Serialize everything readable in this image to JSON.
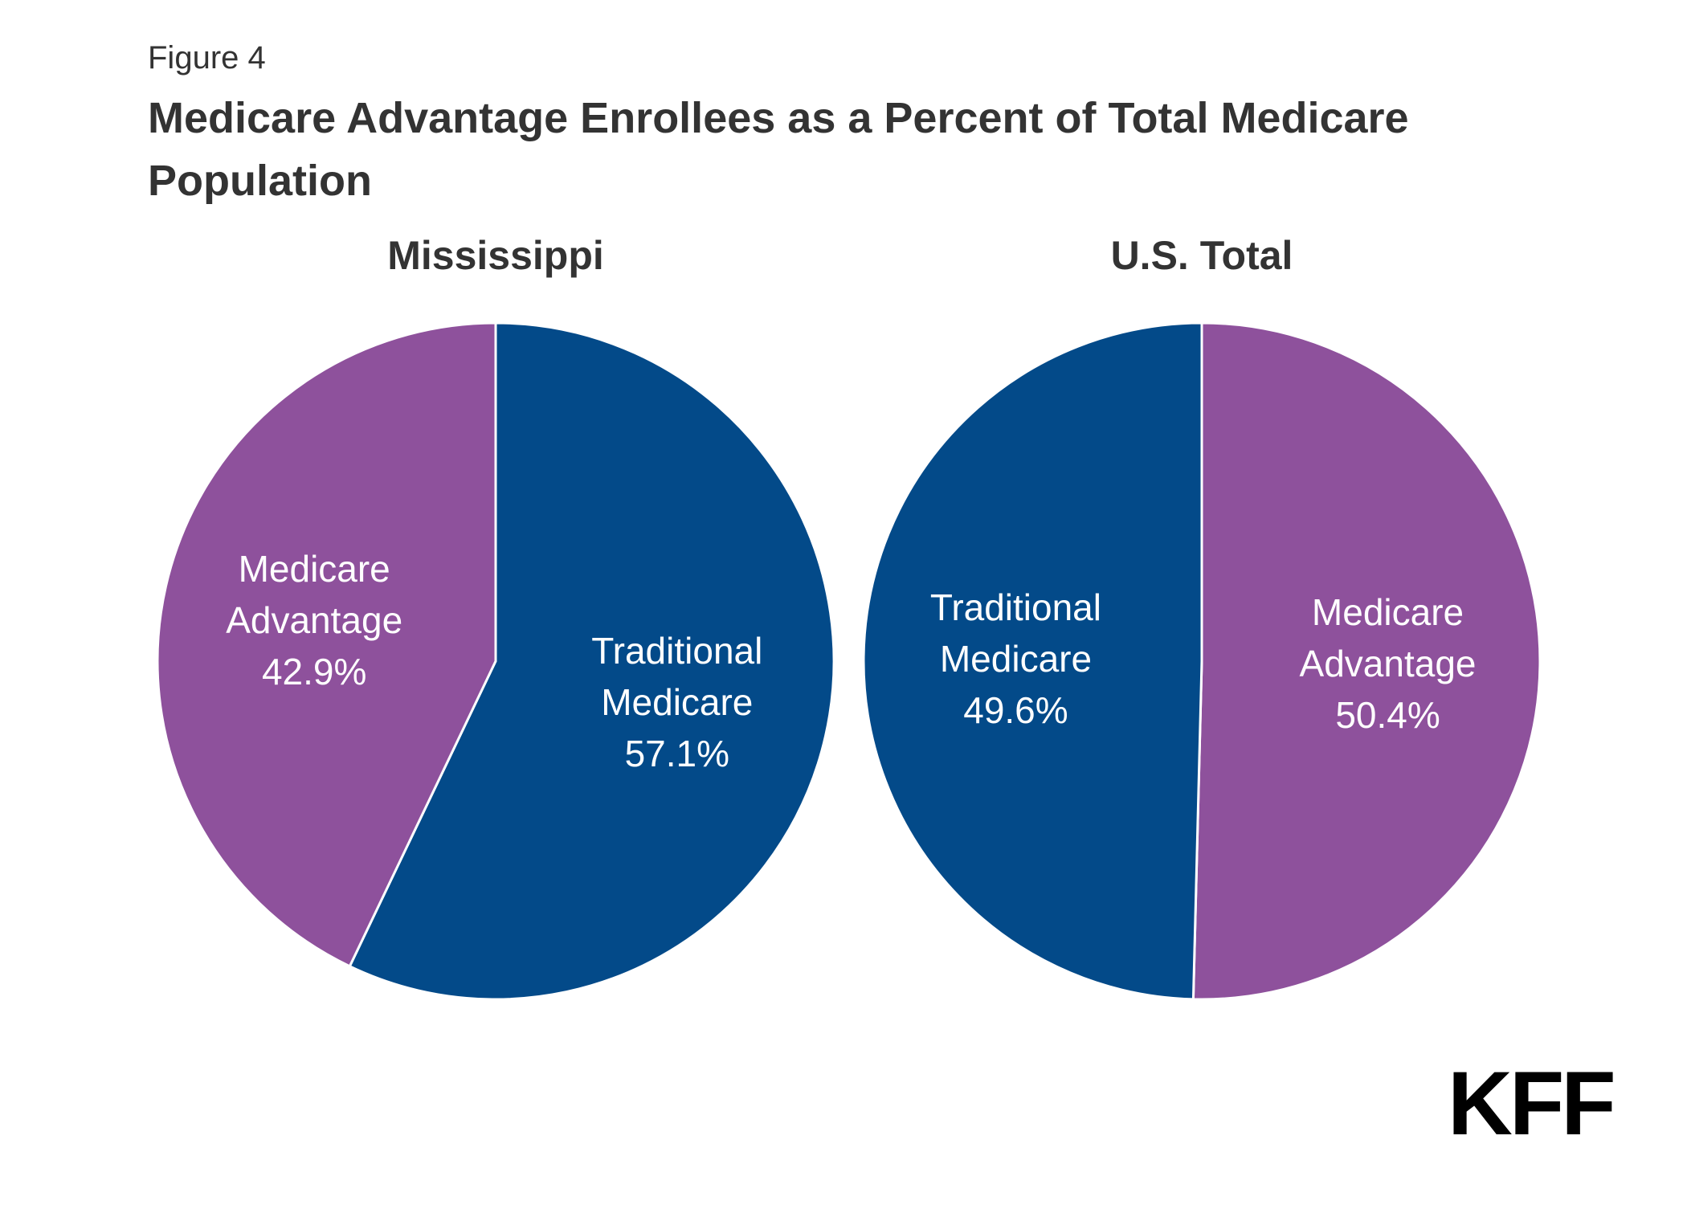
{
  "figure_label": "Figure 4",
  "title": "Medicare Advantage Enrollees as a Percent of Total Medicare Population",
  "logo": "KFF",
  "colors": {
    "medicare_advantage": "#8E519C",
    "traditional_medicare": "#034A89",
    "label_text": "#FFFFFF",
    "title_text": "#333333"
  },
  "chart_data": [
    {
      "type": "pie",
      "title": "Mississippi",
      "slices": [
        {
          "label": [
            "Traditional",
            "Medicare"
          ],
          "value": 57.1,
          "value_label": "57.1%",
          "color": "#034A89"
        },
        {
          "label": [
            "Medicare",
            "Advantage"
          ],
          "value": 42.9,
          "value_label": "42.9%",
          "color": "#8E519C"
        }
      ]
    },
    {
      "type": "pie",
      "title": "U.S. Total",
      "slices": [
        {
          "label": [
            "Medicare",
            "Advantage"
          ],
          "value": 50.4,
          "value_label": "50.4%",
          "color": "#8E519C"
        },
        {
          "label": [
            "Traditional",
            "Medicare"
          ],
          "value": 49.6,
          "value_label": "49.6%",
          "color": "#034A89"
        }
      ]
    }
  ]
}
